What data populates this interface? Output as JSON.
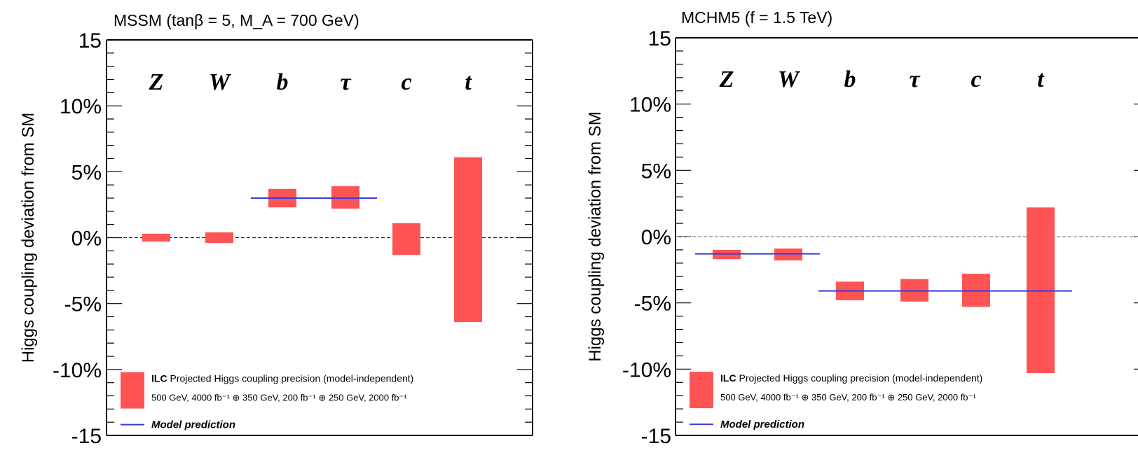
{
  "chart_data": [
    {
      "type": "bar",
      "title": "MSSM (tanβ = 5, M_A = 700 GeV)",
      "ylabel": "Higgs coupling deviation from SM",
      "ylim": [
        -15,
        15
      ],
      "yticks": [
        "15",
        "10%",
        "5%",
        "0%",
        "-5%",
        "-10%",
        "-15"
      ],
      "categories": [
        "Z",
        "W",
        "b",
        "τ",
        "c",
        "t"
      ],
      "grid": false,
      "legend_position": "bottom-left",
      "series": [
        {
          "name": "ILC Projected Higgs coupling precision (model-independent)",
          "ranges": [
            [
              -0.3,
              0.3
            ],
            [
              -0.4,
              0.4
            ],
            [
              2.3,
              3.7
            ],
            [
              2.2,
              3.9
            ],
            [
              -1.3,
              1.1
            ],
            [
              -6.4,
              6.1
            ]
          ]
        },
        {
          "name": "Model prediction",
          "segments": [
            {
              "from": "b",
              "to": "τ",
              "value": 3.0
            }
          ]
        }
      ],
      "legend": {
        "line1_bold": "ILC",
        "line1_text": "Projected Higgs coupling precision (model-independent)",
        "line2": "500 GeV, 4000 fb⁻¹ ⊕ 350 GeV, 200 fb⁻¹ ⊕ 250 GeV, 2000 fb⁻¹",
        "line3": "Model prediction"
      },
      "colors": {
        "band": "#ff5454",
        "prediction": "#3a3adc"
      }
    },
    {
      "type": "bar",
      "title": "MCHM5 (f = 1.5 TeV)",
      "ylabel": "Higgs coupling deviation from SM",
      "ylim": [
        -15,
        15
      ],
      "yticks": [
        "15",
        "10%",
        "5%",
        "0%",
        "-5%",
        "-10%",
        "-15"
      ],
      "categories": [
        "Z",
        "W",
        "b",
        "τ",
        "c",
        "t"
      ],
      "grid": false,
      "legend_position": "bottom-left",
      "series": [
        {
          "name": "ILC Projected Higgs coupling precision (model-independent)",
          "ranges": [
            [
              -1.7,
              -1.0
            ],
            [
              -1.8,
              -0.9
            ],
            [
              -4.8,
              -3.4
            ],
            [
              -4.9,
              -3.2
            ],
            [
              -5.3,
              -2.8
            ],
            [
              -10.3,
              2.2
            ]
          ]
        },
        {
          "name": "Model prediction",
          "segments": [
            {
              "from": "Z",
              "to": "W",
              "value": -1.3
            },
            {
              "from": "b",
              "to": "t",
              "value": -4.1
            }
          ]
        }
      ],
      "legend": {
        "line1_bold": "ILC",
        "line1_text": "Projected Higgs coupling precision (model-independent)",
        "line2": "500 GeV, 4000 fb⁻¹ ⊕ 350 GeV, 200 fb⁻¹ ⊕ 250 GeV, 2000 fb⁻¹",
        "line3": "Model prediction"
      },
      "colors": {
        "band": "#ff5454",
        "prediction": "#3a3adc"
      }
    }
  ]
}
